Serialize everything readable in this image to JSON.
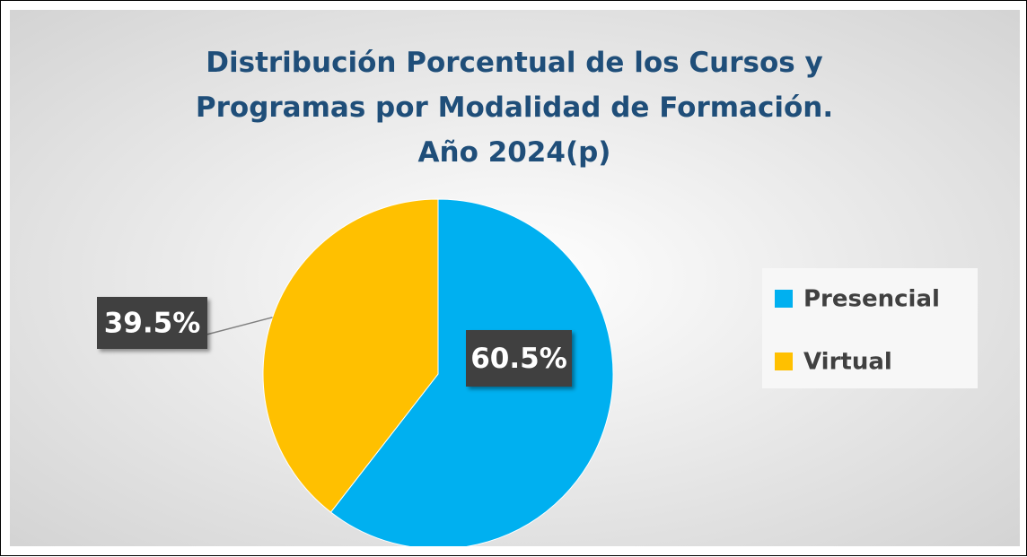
{
  "chart_data": {
    "type": "pie",
    "title": "Distribución Porcentual de los Cursos y Programas por Modalidad de Formación. Año 2024(p)",
    "categories": [
      "Presencial",
      "Virtual"
    ],
    "values": [
      60.5,
      39.5
    ],
    "value_labels": [
      "60.5%",
      "39.5%"
    ],
    "colors": [
      "#00b0f0",
      "#ffc000"
    ],
    "legend": "right"
  }
}
